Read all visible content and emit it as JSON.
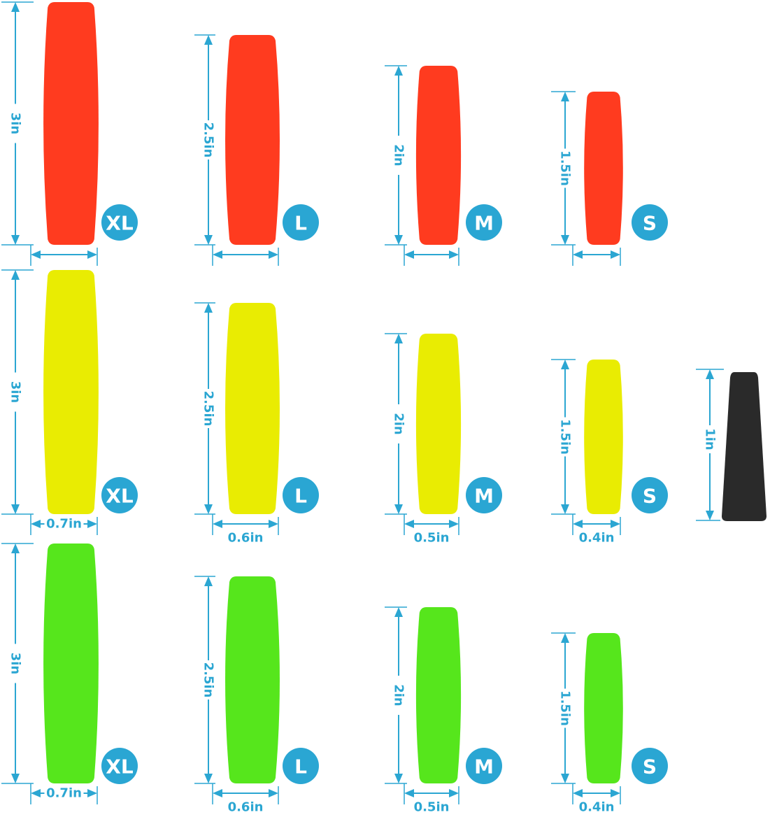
{
  "colors": {
    "dimension": "#2ba6d2",
    "badge": "#2aa6d3",
    "red": "#ff3b1f",
    "yellow": "#e9ec02",
    "green": "#56e61c",
    "cone": "#2a2a2a"
  },
  "sizes": [
    {
      "badge": "XL",
      "height": "3in",
      "width": "0.7in"
    },
    {
      "badge": "L",
      "height": "2.5in",
      "width": "0.6in"
    },
    {
      "badge": "M",
      "height": "2in",
      "width": "0.5in"
    },
    {
      "badge": "S",
      "height": "1.5in",
      "width": "0.4in"
    }
  ],
  "rows": [
    {
      "color": "red",
      "show_width_labels": false
    },
    {
      "color": "yellow",
      "show_width_labels": true
    },
    {
      "color": "green",
      "show_width_labels": true
    }
  ],
  "cone": {
    "height": "1in"
  }
}
